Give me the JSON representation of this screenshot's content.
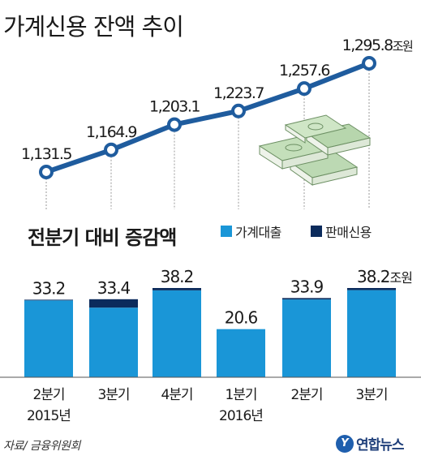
{
  "colors": {
    "line": "#1f5c9e",
    "marker_fill": "#ffffff",
    "bar_loan": "#1a96d7",
    "bar_sales": "#0b2b5c",
    "text": "#1a1a1a",
    "drop_line": "#9a9a9a"
  },
  "credit": "자료/ 금융위원회",
  "logo": {
    "mark": "Y",
    "text": "연합뉴스"
  },
  "chart_data": [
    {
      "type": "line",
      "title": "가계신용 잔액 추이",
      "unit_suffix": "조원",
      "points": [
        {
          "label": "1,131.5",
          "value": 1131.5
        },
        {
          "label": "1,164.9",
          "value": 1164.9
        },
        {
          "label": "1,203.1",
          "value": 1203.1
        },
        {
          "label": "1,223.7",
          "value": 1223.7
        },
        {
          "label": "1,257.6",
          "value": 1257.6
        },
        {
          "label": "1,295.8",
          "value": 1295.8
        }
      ],
      "ylim": [
        1120,
        1310
      ],
      "grid": false,
      "decoration": "money-stacks-icon"
    },
    {
      "type": "bar",
      "title": "전분기 대비 증감액",
      "unit_suffix": "조원",
      "legend": [
        "가계대출",
        "판매신용"
      ],
      "legend_placement": "top-right",
      "categories": [
        "2분기",
        "3분기",
        "4분기",
        "1분기",
        "2분기",
        "3분기"
      ],
      "year_labels": [
        "2015년",
        "",
        "",
        "2016년",
        "",
        ""
      ],
      "totals": [
        "33.2",
        "33.4",
        "38.2",
        "20.6",
        "33.9",
        "38.2"
      ],
      "series": [
        {
          "name": "가계대출",
          "values": [
            32.9,
            29.8,
            37.2,
            20.7,
            33.3,
            37.3
          ]
        },
        {
          "name": "판매신용",
          "values": [
            0.3,
            3.6,
            1.0,
            -0.1,
            0.6,
            0.9
          ]
        }
      ],
      "ylim": [
        0,
        40
      ]
    }
  ]
}
